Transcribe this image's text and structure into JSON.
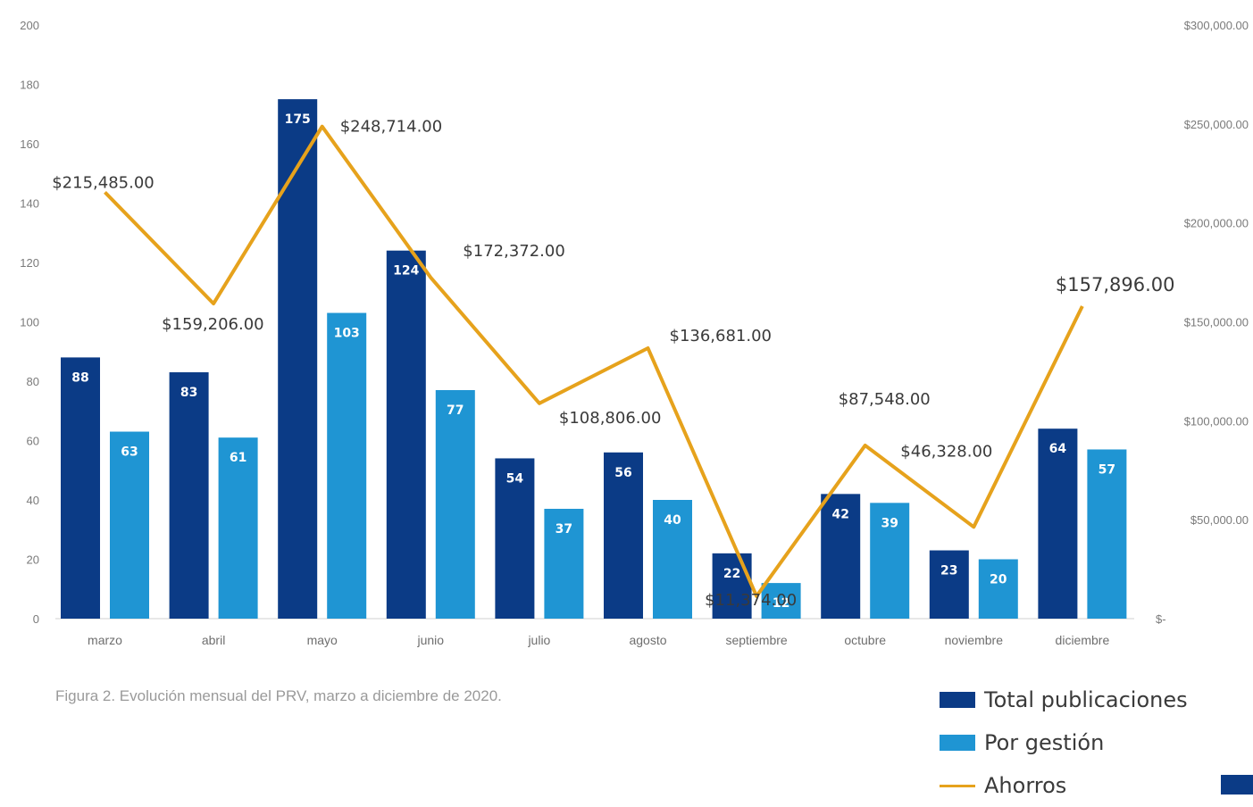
{
  "caption": "Figura 2. Evolución mensual del PRV, marzo a diciembre de 2020.",
  "chart_data": {
    "type": "bar",
    "categories": [
      "marzo",
      "abril",
      "mayo",
      "junio",
      "julio",
      "agosto",
      "septiembre",
      "octubre",
      "noviembre",
      "diciembre"
    ],
    "series": [
      {
        "name": "Total publicaciones",
        "type": "bar",
        "axis": "left",
        "color": "#0b3b86",
        "values": [
          88,
          83,
          175,
          124,
          54,
          56,
          22,
          42,
          23,
          64
        ]
      },
      {
        "name": "Por gestión",
        "type": "bar",
        "axis": "left",
        "color": "#1f95d3",
        "values": [
          63,
          61,
          103,
          77,
          37,
          40,
          12,
          39,
          20,
          57
        ]
      },
      {
        "name": "Ahorros",
        "type": "line",
        "axis": "right",
        "color": "#e6a21c",
        "values": [
          215485,
          159206,
          248714,
          172372,
          108806,
          136681,
          11374,
          87548,
          46328,
          157896
        ],
        "labels": [
          "$215,485.00",
          "$159,206.00",
          "$248,714.00",
          "$172,372.00",
          "$108,806.00",
          "$136,681.00",
          "$11,374.00",
          "$87,548.00",
          "$46,328.00",
          "$157,896.00"
        ]
      }
    ],
    "left_axis": {
      "ylim": [
        0,
        200
      ],
      "ticks": [
        "0",
        "20",
        "40",
        "60",
        "80",
        "100",
        "120",
        "140",
        "160",
        "180",
        "200"
      ]
    },
    "right_axis": {
      "ylim": [
        0,
        300000
      ],
      "tick_values": [
        0,
        50000,
        100000,
        150000,
        200000,
        250000,
        300000
      ],
      "ticks": [
        "$-",
        "$50,000.00",
        "$100,000.00",
        "$150,000.00",
        "$200,000.00",
        "$250,000.00",
        "$300,000.00"
      ]
    },
    "grid": false,
    "legend_position": "bottom-right",
    "legend": [
      "Total publicaciones",
      "Por gestión",
      "Ahorros"
    ]
  }
}
